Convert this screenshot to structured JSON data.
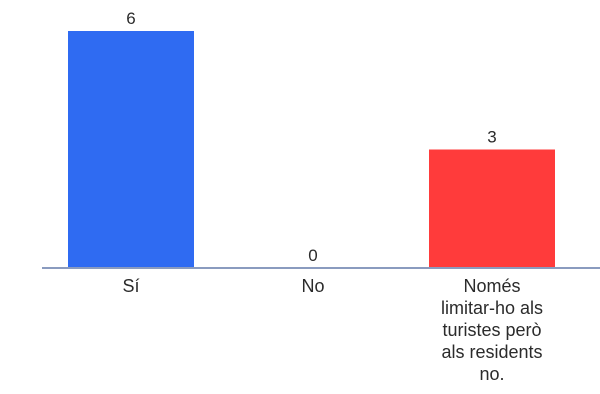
{
  "chart_data": {
    "type": "bar",
    "categories": [
      "Sí",
      "No",
      "Només limitar-ho als turistes però als residents no."
    ],
    "category_lines": [
      [
        "Sí"
      ],
      [
        "No"
      ],
      [
        "Només",
        "limitar-ho als",
        "turistes però",
        "als residents",
        "no."
      ]
    ],
    "values": [
      6,
      0,
      3
    ],
    "value_labels": [
      "6",
      "0",
      "3"
    ],
    "colors": [
      "#2f6bf2",
      "#7f8fbf",
      "#ff3b3b"
    ],
    "axis_color": "#8a9bbf",
    "title": "",
    "xlabel": "",
    "ylabel": "",
    "ylim": [
      0,
      6
    ],
    "grid": false,
    "legend": "none"
  }
}
